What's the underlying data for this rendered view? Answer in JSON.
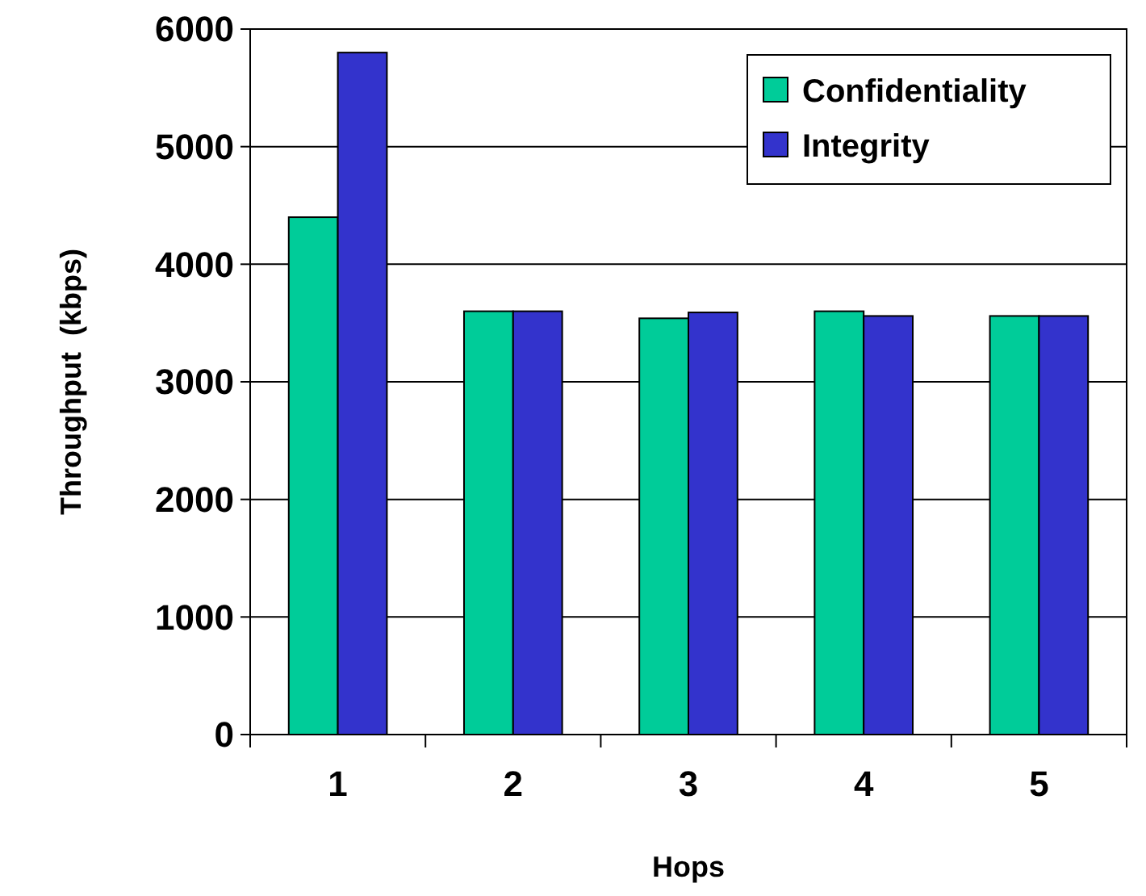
{
  "chart_data": {
    "type": "bar",
    "xlabel": "Hops",
    "ylabel": "Throughput  (kbps)",
    "categories": [
      "1",
      "2",
      "3",
      "4",
      "5"
    ],
    "series": [
      {
        "name": "Confidentiality",
        "color": "#00cc99",
        "values": [
          4400,
          3600,
          3540,
          3600,
          3560
        ]
      },
      {
        "name": "Integrity",
        "color": "#3333cc",
        "values": [
          5800,
          3600,
          3590,
          3560,
          3560
        ]
      }
    ],
    "ylim": [
      0,
      6000
    ],
    "yticks": [
      0,
      1000,
      2000,
      3000,
      4000,
      5000,
      6000
    ],
    "grid": "y",
    "legend": "top right"
  }
}
